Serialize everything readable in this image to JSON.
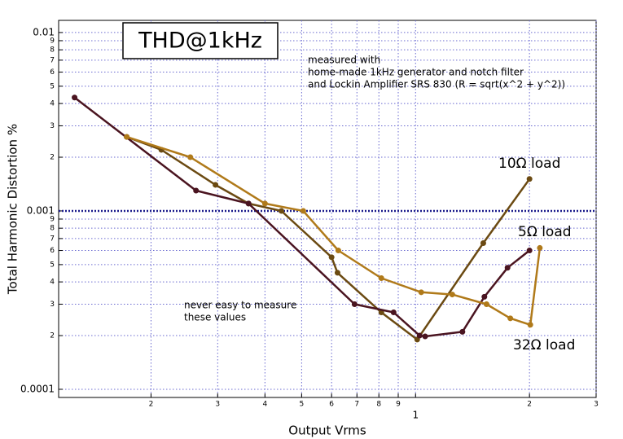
{
  "chart_data": {
    "type": "line",
    "title": "THD@1kHz",
    "x_label": "Output Vrms",
    "y_label": "Total Harmonic Distortion %",
    "annotations": [
      {
        "lines": [
          "measured with",
          "home-made 1kHz generator and notch filter",
          "and Lockin Amplifier SRS 830 (R = sqrt(x^2 + y^2))"
        ]
      },
      {
        "lines": [
          "never easy to measure",
          "these values"
        ]
      }
    ],
    "log_x": true,
    "log_y": true,
    "grid": true,
    "xlim": [
      0.114,
      3
    ],
    "ylim": [
      9e-05,
      0.0117
    ],
    "xticks": [
      {
        "value": 0.2,
        "label": "2"
      },
      {
        "value": 0.3,
        "label": "3"
      },
      {
        "value": 0.4,
        "label": "4"
      },
      {
        "value": 0.5,
        "label": "5"
      },
      {
        "value": 0.6,
        "label": "6"
      },
      {
        "value": 0.7,
        "label": "7"
      },
      {
        "value": 0.8,
        "label": "8"
      },
      {
        "value": 0.9,
        "label": "9"
      },
      1,
      2,
      3
    ],
    "yticks": [
      0.0001,
      {
        "value": 0.0002,
        "label": "2"
      },
      {
        "value": 0.0003,
        "label": "3"
      },
      {
        "value": 0.0004,
        "label": "4"
      },
      {
        "value": 0.0005,
        "label": "5"
      },
      {
        "value": 0.0006,
        "label": "6"
      },
      {
        "value": 0.0007,
        "label": "7"
      },
      {
        "value": 0.0008,
        "label": "8"
      },
      {
        "value": 0.0009,
        "label": "9"
      },
      0.001,
      {
        "value": 0.002,
        "label": "2"
      },
      {
        "value": 0.003,
        "label": "3"
      },
      {
        "value": 0.004,
        "label": "4"
      },
      {
        "value": 0.005,
        "label": "5"
      },
      {
        "value": 0.006,
        "label": "6"
      },
      {
        "value": 0.007,
        "label": "7"
      },
      {
        "value": 0.008,
        "label": "8"
      },
      {
        "value": 0.009,
        "label": "9"
      },
      0.01
    ],
    "reference_line": {
      "value": 0.001,
      "color": "#1a1a8c"
    },
    "series": [
      {
        "name": "10Ω  load",
        "color": "#6b4a12",
        "x": [
          0.1725,
          0.213,
          0.296,
          0.362,
          0.442,
          0.6,
          0.622,
          0.812,
          1.01,
          1.51,
          2.0
        ],
        "values": [
          0.0026,
          0.0022,
          0.0014,
          0.0011,
          0.001,
          0.00055,
          0.00045,
          0.00027,
          0.00019,
          0.00066,
          0.00151
        ]
      },
      {
        "name": "5Ω  load",
        "color": "#4a1420",
        "x": [
          0.1256,
          0.263,
          0.362,
          0.69,
          0.875,
          1.025,
          1.06,
          1.33,
          1.52,
          1.75,
          2.0
        ],
        "values": [
          0.00432,
          0.0013,
          0.0011,
          0.0003,
          0.00027,
          0.0002,
          0.000198,
          0.00021,
          0.00033,
          0.00048,
          0.0006
        ]
      },
      {
        "name": "32Ω  load",
        "color": "#b07a1a",
        "x": [
          0.1725,
          0.254,
          0.4,
          0.505,
          0.625,
          0.812,
          1.035,
          1.25,
          1.54,
          1.78,
          2.01,
          2.13
        ],
        "values": [
          0.0026,
          0.002,
          0.0011,
          0.001,
          0.0006,
          0.00042,
          0.00035,
          0.00034,
          0.0003,
          0.00025,
          0.00023,
          0.00062
        ]
      }
    ]
  }
}
